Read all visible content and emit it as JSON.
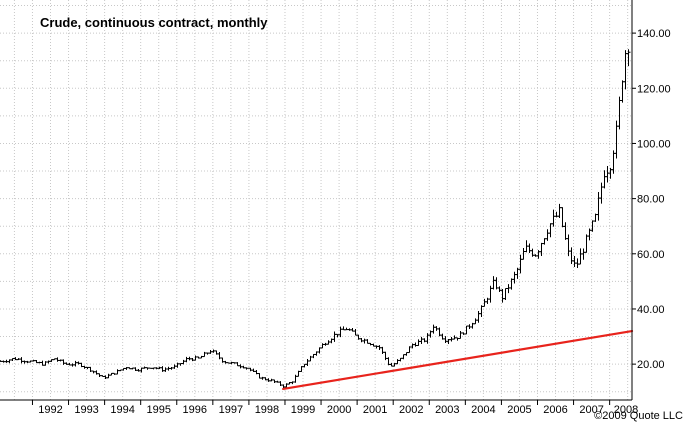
{
  "chart_data": {
    "type": "ohlc",
    "title": "Crude, continuous contract, monthly",
    "credit": "©2009 Quote LLC",
    "xlabel": "",
    "ylabel": "",
    "xlim": [
      1991.1,
      2008.62
    ],
    "ylim": [
      7,
      152
    ],
    "y_ticks": [
      20,
      40,
      60,
      80,
      100,
      120,
      140
    ],
    "y_tick_labels": [
      "20.00",
      "40.00",
      "60.00",
      "80.00",
      "100.00",
      "120.00",
      "140.00"
    ],
    "x_ticks": [
      1992,
      1993,
      1994,
      1995,
      1996,
      1997,
      1998,
      1999,
      2000,
      2001,
      2002,
      2003,
      2004,
      2005,
      2006,
      2007,
      2008
    ],
    "x_tick_labels": [
      "1992",
      "1993",
      "1994",
      "1995",
      "1996",
      "1997",
      "1998",
      "1999",
      "2000",
      "2001",
      "2002",
      "2003",
      "2004",
      "2005",
      "2006",
      "2007",
      "2008"
    ],
    "grid": true,
    "axis_side": "right",
    "price_points": [
      [
        1991.1,
        21
      ],
      [
        1991.5,
        22
      ],
      [
        1991.9,
        21
      ],
      [
        1992.3,
        20
      ],
      [
        1992.6,
        22
      ],
      [
        1992.9,
        20
      ],
      [
        1993.3,
        20
      ],
      [
        1993.6,
        18
      ],
      [
        1993.95,
        15
      ],
      [
        1994.3,
        17
      ],
      [
        1994.6,
        19
      ],
      [
        1994.9,
        18
      ],
      [
        1995.3,
        19
      ],
      [
        1995.6,
        18
      ],
      [
        1995.95,
        19
      ],
      [
        1996.3,
        22
      ],
      [
        1996.6,
        22
      ],
      [
        1996.95,
        25
      ],
      [
        1997.3,
        21
      ],
      [
        1997.6,
        20
      ],
      [
        1997.9,
        19
      ],
      [
        1998.3,
        15
      ],
      [
        1998.6,
        14
      ],
      [
        1998.95,
        12
      ],
      [
        1999.2,
        14
      ],
      [
        1999.5,
        20
      ],
      [
        1999.8,
        24
      ],
      [
        2000.1,
        28
      ],
      [
        2000.4,
        31
      ],
      [
        2000.7,
        33
      ],
      [
        2000.95,
        30
      ],
      [
        2001.3,
        28
      ],
      [
        2001.6,
        26
      ],
      [
        2001.9,
        19
      ],
      [
        2002.2,
        22
      ],
      [
        2002.5,
        27
      ],
      [
        2002.9,
        29
      ],
      [
        2003.1,
        34
      ],
      [
        2003.4,
        29
      ],
      [
        2003.8,
        30
      ],
      [
        2004.1,
        34
      ],
      [
        2004.4,
        39
      ],
      [
        2004.8,
        50
      ],
      [
        2005.0,
        44
      ],
      [
        2005.4,
        53
      ],
      [
        2005.65,
        62
      ],
      [
        2005.95,
        60
      ],
      [
        2006.3,
        70
      ],
      [
        2006.6,
        75
      ],
      [
        2006.85,
        60
      ],
      [
        2007.05,
        55
      ],
      [
        2007.3,
        63
      ],
      [
        2007.6,
        73
      ],
      [
        2007.85,
        90
      ],
      [
        2008.0,
        92
      ],
      [
        2008.2,
        105
      ],
      [
        2008.35,
        125
      ],
      [
        2008.5,
        140
      ],
      [
        2008.58,
        125
      ]
    ],
    "series": [
      {
        "type": "trendline",
        "color": "#e8231c",
        "points": [
          [
            1998.95,
            11
          ],
          [
            2008.62,
            32
          ]
        ]
      }
    ]
  }
}
